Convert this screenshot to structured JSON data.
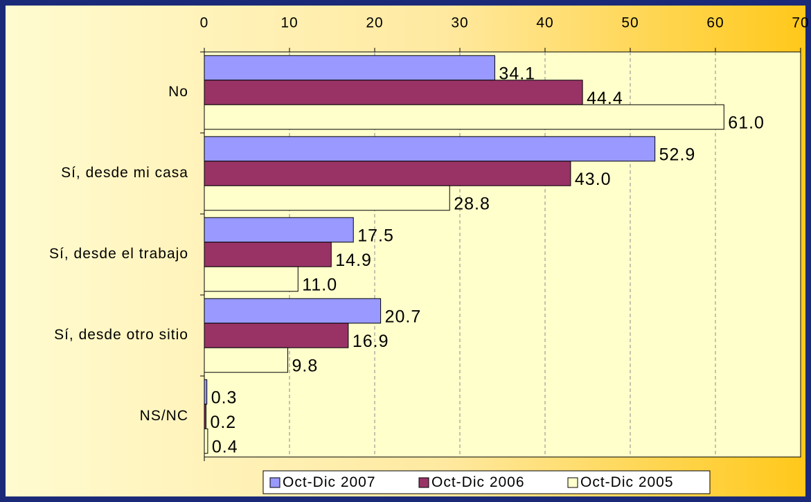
{
  "chart_data": {
    "type": "hbar",
    "categories": [
      "No",
      "Sí, desde mi casa",
      "Sí, desde el trabajo",
      "Sí, desde otro sitio",
      "NS/NC"
    ],
    "series": [
      {
        "name": "Oct-Dic 2007",
        "color": "#9999ff",
        "values": [
          34.1,
          52.9,
          17.5,
          20.7,
          0.3
        ],
        "value_labels": [
          "34.1",
          "52.9",
          "17.5",
          "20.7",
          "0.3"
        ]
      },
      {
        "name": "Oct-Dic 2006",
        "color": "#993366",
        "values": [
          44.4,
          43.0,
          14.9,
          16.9,
          0.2
        ],
        "value_labels": [
          "44.4",
          "43.0",
          "14.9",
          "16.9",
          "0.2"
        ]
      },
      {
        "name": "Oct-Dic 2005",
        "color": "#ffffcc",
        "values": [
          61.0,
          28.8,
          11.0,
          9.8,
          0.4
        ],
        "value_labels": [
          "61.0",
          "28.8",
          "11.0",
          "9.8",
          "0.4"
        ]
      }
    ],
    "xlim": [
      0,
      70
    ],
    "xticks": [
      0,
      10,
      20,
      30,
      40,
      50,
      60,
      70
    ],
    "grid": true,
    "legend": "bottom"
  }
}
